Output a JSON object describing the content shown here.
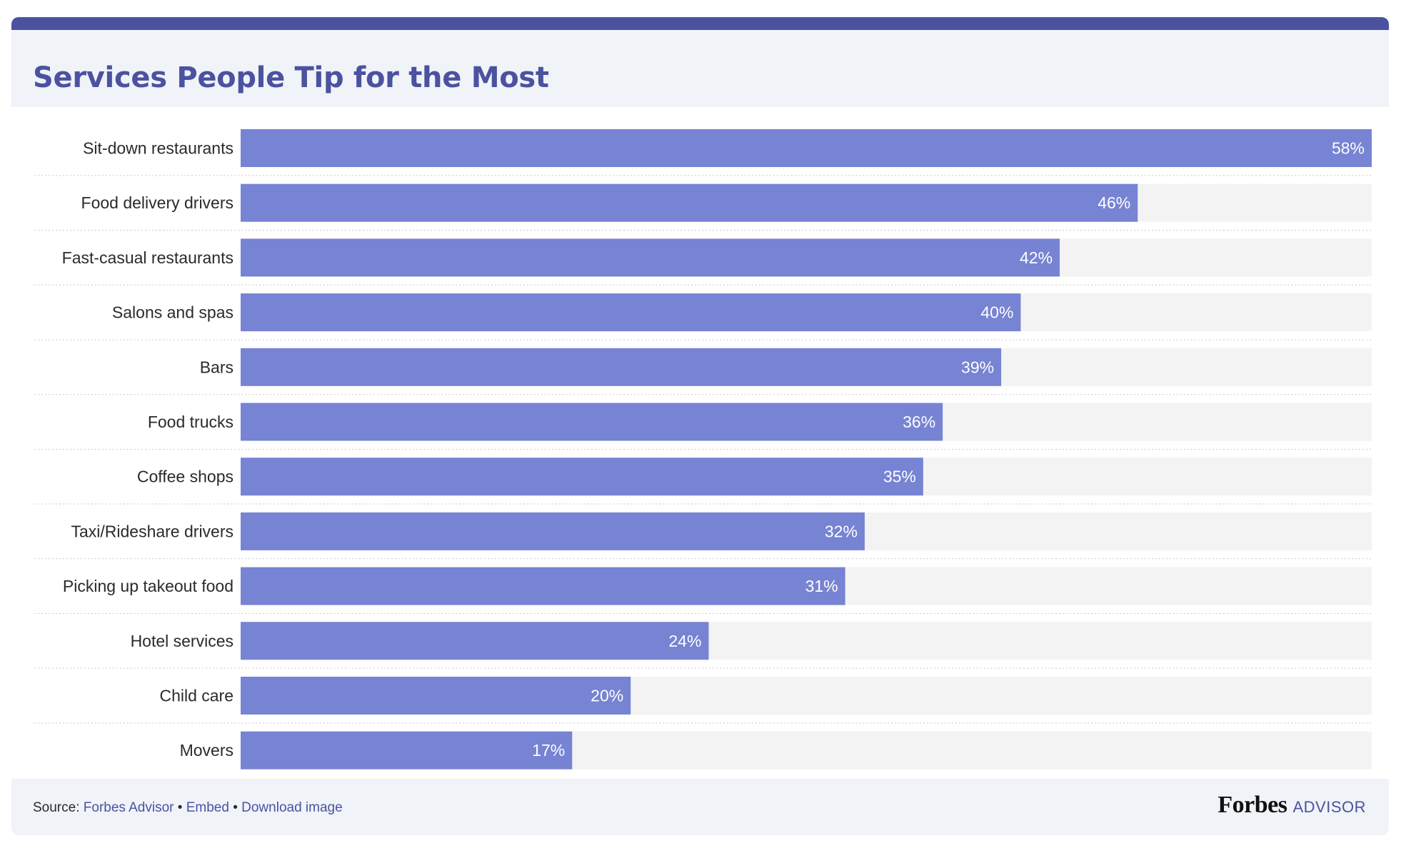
{
  "title": "Services People Tip for the Most",
  "colors": {
    "accent": "#4b52a0",
    "bar": "#7783d3",
    "track": "#f3f3f3",
    "header_bg": "#f0f3f8"
  },
  "chart_data": {
    "type": "bar",
    "orientation": "horizontal",
    "title": "Services People Tip for the Most",
    "categories": [
      "Sit-down restaurants",
      "Food delivery drivers",
      "Fast-casual restaurants",
      "Salons and spas",
      "Bars",
      "Food trucks",
      "Coffee shops",
      "Taxi/Rideshare drivers",
      "Picking up takeout food",
      "Hotel services",
      "Child care",
      "Movers"
    ],
    "values": [
      58,
      46,
      42,
      40,
      39,
      36,
      35,
      32,
      31,
      24,
      20,
      17
    ],
    "value_labels": [
      "58%",
      "46%",
      "42%",
      "40%",
      "39%",
      "36%",
      "35%",
      "32%",
      "31%",
      "24%",
      "20%",
      "17%"
    ],
    "xlim": [
      0,
      58
    ],
    "grid": false,
    "legend": "none"
  },
  "footer": {
    "source_label": "Source:",
    "links": [
      "Forbes Advisor",
      "Embed",
      "Download image"
    ],
    "separator": "•"
  },
  "brand": {
    "name": "Forbes",
    "suffix": "ADVISOR"
  }
}
